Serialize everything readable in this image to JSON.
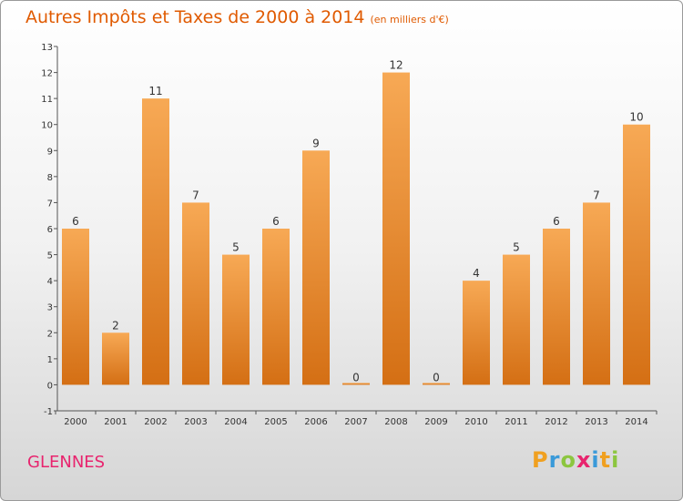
{
  "header": {
    "title": "Autres Impôts et Taxes de 2000 à 2014",
    "subtitle": "(en milliers d'€)"
  },
  "footer": {
    "commune": "GLENNES",
    "logo": [
      "P",
      "r",
      "o",
      "x",
      "i",
      "t",
      "i"
    ]
  },
  "colors": {
    "bar_top": "#f7a955",
    "bar_bottom": "#d46f14",
    "title": "#e05a00",
    "commune": "#e8246e",
    "logo": [
      "#f0a020",
      "#3a9ad9",
      "#8cc63f",
      "#e8246e",
      "#3a9ad9",
      "#f0a020",
      "#8cc63f"
    ]
  },
  "chart_data": {
    "type": "bar",
    "title": "Autres Impôts et Taxes de 2000 à 2014",
    "subtitle": "(en milliers d'€)",
    "categories": [
      "2000",
      "2001",
      "2002",
      "2003",
      "2004",
      "2005",
      "2006",
      "2007",
      "2008",
      "2009",
      "2010",
      "2011",
      "2012",
      "2013",
      "2014"
    ],
    "values": [
      6,
      2,
      11,
      7,
      5,
      6,
      9,
      0,
      12,
      0,
      4,
      5,
      6,
      7,
      10
    ],
    "data_labels": [
      "6",
      "2",
      "11",
      "7",
      "5",
      "6",
      "9",
      "0",
      "12",
      "0",
      "4",
      "5",
      "6",
      "7",
      "10"
    ],
    "ylim": [
      -1,
      13
    ],
    "yticks": [
      "-1",
      "0",
      "1",
      "2",
      "3",
      "4",
      "5",
      "6",
      "7",
      "8",
      "9",
      "10",
      "11",
      "12",
      "13"
    ],
    "grid": false,
    "legend": "none"
  }
}
